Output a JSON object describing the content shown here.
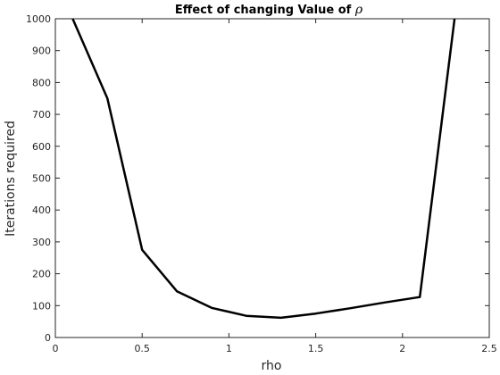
{
  "chart_data": {
    "type": "line",
    "title": "Effect of changing Value of ",
    "title_symbol": "ρ",
    "xlabel": "rho",
    "ylabel": "Iterations required",
    "xlim": [
      0,
      2.5
    ],
    "ylim": [
      0,
      1000
    ],
    "x_ticks": [
      0,
      0.5,
      1,
      1.5,
      2,
      2.5
    ],
    "x_tick_labels": [
      "0",
      "0.5",
      "1",
      "1.5",
      "2",
      "2.5"
    ],
    "y_ticks": [
      0,
      100,
      200,
      300,
      400,
      500,
      600,
      700,
      800,
      900,
      1000
    ],
    "y_tick_labels": [
      "0",
      "100",
      "200",
      "300",
      "400",
      "500",
      "600",
      "700",
      "800",
      "900",
      "1000"
    ],
    "grid": false,
    "line_color": "#000000",
    "series": [
      {
        "x": [
          0.1,
          0.3,
          0.5,
          0.7,
          0.9,
          1.1,
          1.3,
          1.5,
          1.7,
          1.9,
          2.1,
          2.3
        ],
        "y": [
          1000,
          750,
          275,
          145,
          93,
          68,
          62,
          75,
          92,
          110,
          127,
          1000
        ]
      }
    ]
  }
}
